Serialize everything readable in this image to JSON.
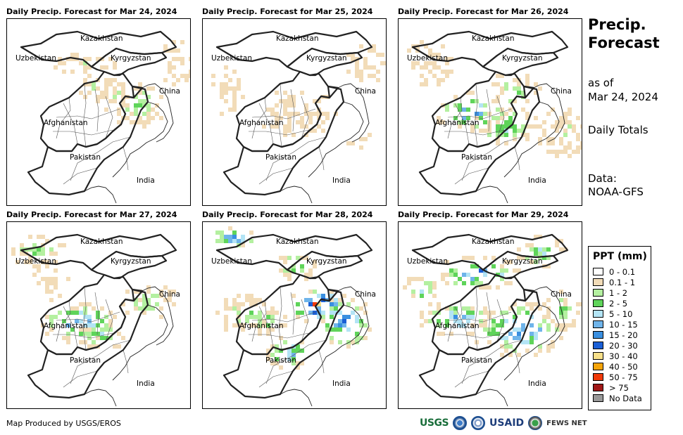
{
  "panels": [
    {
      "title": "Daily Precip. Forecast for Mar 24, 2024",
      "intensity": 1
    },
    {
      "title": "Daily Precip. Forecast for Mar 25, 2024",
      "intensity": 0
    },
    {
      "title": "Daily Precip. Forecast for Mar 26, 2024",
      "intensity": 2
    },
    {
      "title": "Daily Precip. Forecast for Mar 27, 2024",
      "intensity": 2
    },
    {
      "title": "Daily Precip. Forecast for Mar 28, 2024",
      "intensity": 3
    },
    {
      "title": "Daily Precip. Forecast for Mar 29, 2024",
      "intensity": 3
    }
  ],
  "map_labels": {
    "kazakhstan": "Kazakhstan",
    "uzbekistan": "Uzbekistan",
    "kyrgyzstan": "Kyrgyzstan",
    "china": "China",
    "afghanistan": "Afghanistan",
    "pakistan": "Pakistan",
    "india": "India"
  },
  "sidebar": {
    "title": "Precip. Forecast",
    "as_of_label": "as of",
    "as_of_date": "Mar 24, 2024",
    "totals": "Daily Totals",
    "data_label": "Data:",
    "data_source": "NOAA-GFS"
  },
  "legend": {
    "title": "PPT (mm)",
    "items": [
      {
        "label": "0 - 0.1",
        "color": "#ffffff"
      },
      {
        "label": "0.1 - 1",
        "color": "#f2dcb8"
      },
      {
        "label": "1 - 2",
        "color": "#b4f0a0"
      },
      {
        "label": "2 - 5",
        "color": "#5fd45a"
      },
      {
        "label": "5 - 10",
        "color": "#b3e4f5"
      },
      {
        "label": "10 - 15",
        "color": "#6fb4ea"
      },
      {
        "label": "15 - 20",
        "color": "#3a8fe0"
      },
      {
        "label": "20 - 30",
        "color": "#1a5fd6"
      },
      {
        "label": "30 - 40",
        "color": "#f7e08a"
      },
      {
        "label": "40 - 50",
        "color": "#f5a40a"
      },
      {
        "label": "50 - 75",
        "color": "#f03a0a"
      },
      {
        "label": "> 75",
        "color": "#a01818"
      },
      {
        "label": "No Data",
        "color": "#999999"
      }
    ]
  },
  "footer": {
    "credit": "Map Produced by USGS/EROS",
    "logo_usgs": "USGS",
    "logo_usaid": "USAID",
    "logo_fews": "FEWS NET"
  }
}
